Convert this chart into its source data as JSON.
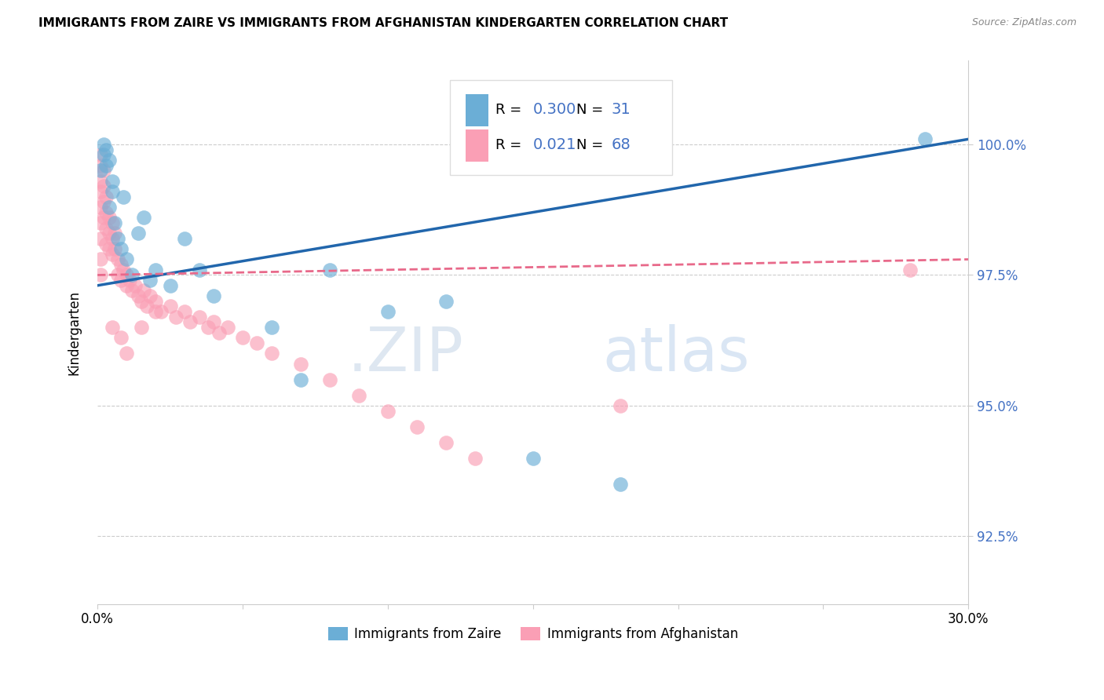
{
  "title": "IMMIGRANTS FROM ZAIRE VS IMMIGRANTS FROM AFGHANISTAN KINDERGARTEN CORRELATION CHART",
  "source": "Source: ZipAtlas.com",
  "ylabel": "Kindergarten",
  "yticks": [
    92.5,
    95.0,
    97.5,
    100.0
  ],
  "xlim": [
    0.0,
    0.3
  ],
  "ylim": [
    91.2,
    101.6
  ],
  "legend_blue_r": "0.300",
  "legend_blue_n": "31",
  "legend_pink_r": "0.021",
  "legend_pink_n": "68",
  "legend_blue_label": "Immigrants from Zaire",
  "legend_pink_label": "Immigrants from Afghanistan",
  "blue_color": "#6baed6",
  "pink_color": "#fa9fb5",
  "blue_line_color": "#2166ac",
  "pink_line_color": "#e8698a",
  "watermark_zip": ".ZIP",
  "watermark_atlas": "atlas",
  "zaire_x": [
    0.001,
    0.002,
    0.002,
    0.003,
    0.003,
    0.004,
    0.004,
    0.005,
    0.005,
    0.006,
    0.007,
    0.008,
    0.009,
    0.01,
    0.012,
    0.014,
    0.016,
    0.018,
    0.02,
    0.025,
    0.03,
    0.035,
    0.04,
    0.06,
    0.07,
    0.08,
    0.1,
    0.12,
    0.15,
    0.18,
    0.285
  ],
  "zaire_y": [
    99.5,
    99.8,
    100.0,
    99.6,
    99.9,
    99.7,
    98.8,
    99.1,
    99.3,
    98.5,
    98.2,
    98.0,
    99.0,
    97.8,
    97.5,
    98.3,
    98.6,
    97.4,
    97.6,
    97.3,
    98.2,
    97.6,
    97.1,
    96.5,
    95.5,
    97.6,
    96.8,
    97.0,
    94.0,
    93.5,
    100.1
  ],
  "afghan_x": [
    0.001,
    0.001,
    0.001,
    0.001,
    0.001,
    0.001,
    0.001,
    0.001,
    0.001,
    0.002,
    0.002,
    0.002,
    0.002,
    0.003,
    0.003,
    0.003,
    0.003,
    0.004,
    0.004,
    0.004,
    0.005,
    0.005,
    0.005,
    0.006,
    0.006,
    0.007,
    0.007,
    0.008,
    0.008,
    0.009,
    0.01,
    0.01,
    0.011,
    0.012,
    0.013,
    0.014,
    0.015,
    0.016,
    0.017,
    0.018,
    0.02,
    0.022,
    0.025,
    0.027,
    0.03,
    0.032,
    0.035,
    0.038,
    0.04,
    0.042,
    0.045,
    0.05,
    0.055,
    0.06,
    0.07,
    0.08,
    0.09,
    0.1,
    0.11,
    0.12,
    0.005,
    0.008,
    0.01,
    0.015,
    0.02,
    0.13,
    0.18,
    0.28
  ],
  "afghan_y": [
    99.8,
    99.6,
    99.3,
    99.1,
    98.8,
    98.5,
    98.2,
    97.8,
    97.5,
    99.5,
    99.2,
    98.9,
    98.6,
    99.0,
    98.7,
    98.4,
    98.1,
    98.6,
    98.3,
    98.0,
    98.5,
    98.2,
    97.9,
    98.3,
    98.0,
    97.8,
    97.5,
    97.7,
    97.4,
    97.6,
    97.5,
    97.3,
    97.4,
    97.2,
    97.3,
    97.1,
    97.0,
    97.2,
    96.9,
    97.1,
    97.0,
    96.8,
    96.9,
    96.7,
    96.8,
    96.6,
    96.7,
    96.5,
    96.6,
    96.4,
    96.5,
    96.3,
    96.2,
    96.0,
    95.8,
    95.5,
    95.2,
    94.9,
    94.6,
    94.3,
    96.5,
    96.3,
    96.0,
    96.5,
    96.8,
    94.0,
    95.0,
    97.6
  ]
}
